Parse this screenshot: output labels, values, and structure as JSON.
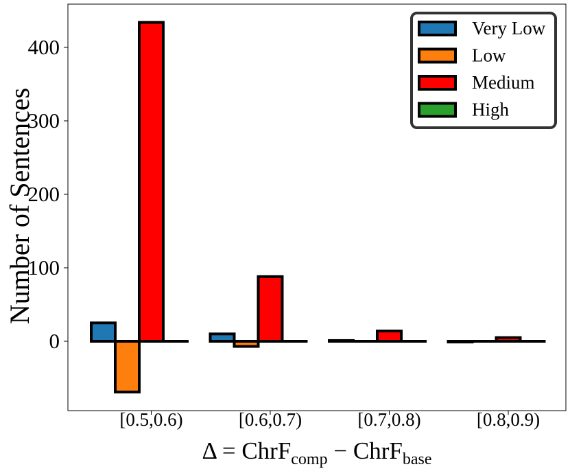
{
  "chart_data": {
    "type": "bar",
    "categories": [
      "[0.5,0.6)",
      "[0.6,0.7)",
      "[0.7,0.8)",
      "[0.8,0.9)"
    ],
    "series": [
      {
        "name": "Very Low",
        "color": "#1f77b4",
        "values": [
          25,
          10,
          1,
          -1
        ]
      },
      {
        "name": "Low",
        "color": "#ff7f0e",
        "values": [
          -69,
          -7,
          0,
          0
        ]
      },
      {
        "name": "Medium",
        "color": "#ff0000",
        "values": [
          434,
          88,
          14,
          5
        ]
      },
      {
        "name": "High",
        "color": "#2ca02c",
        "values": [
          0,
          0,
          0,
          0
        ]
      }
    ],
    "ylabel": "Number of Sentences",
    "xlabel": {
      "prefix": "Δ = ChrF",
      "sub1": "comp",
      "middle": " − ChrF",
      "sub2": "base"
    },
    "yticks": [
      0,
      100,
      200,
      300,
      400
    ],
    "ylim": [
      -95,
      460
    ],
    "grid": false,
    "legend_position": "top-right"
  }
}
